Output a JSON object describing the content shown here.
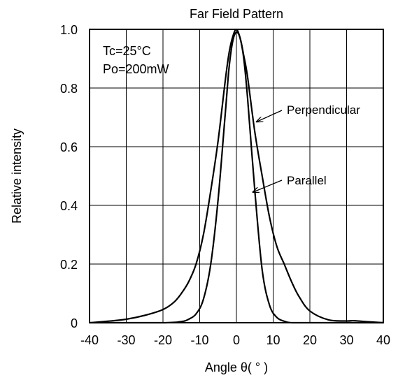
{
  "chart_data": {
    "type": "line",
    "title": "Far Field Pattern",
    "xlabel": "Angle θ( ° )",
    "ylabel": "Relative intensity",
    "xlim": [
      -40,
      40
    ],
    "ylim": [
      0,
      1.0
    ],
    "x_ticks": [
      "-40",
      "-30",
      "-20",
      "-10",
      "0",
      "10",
      "20",
      "30",
      "40"
    ],
    "y_ticks": [
      "0",
      "0.2",
      "0.4",
      "0.6",
      "0.8",
      "1.0"
    ],
    "grid": true,
    "conditions": [
      "Tc=25°C",
      "Po=200mW"
    ],
    "series": [
      {
        "name": "Perpendicular",
        "x": [
          -40,
          -35,
          -30,
          -25,
          -20,
          -17,
          -15,
          -13,
          -11,
          -9,
          -7,
          -5,
          -3,
          -2,
          -1,
          0,
          1,
          2,
          3,
          5,
          7,
          9,
          11,
          13,
          15,
          17,
          20,
          25,
          30,
          32,
          35,
          40
        ],
        "y": [
          0.0,
          0.005,
          0.012,
          0.025,
          0.045,
          0.07,
          0.1,
          0.14,
          0.2,
          0.3,
          0.45,
          0.62,
          0.83,
          0.92,
          0.975,
          1.0,
          0.97,
          0.91,
          0.84,
          0.65,
          0.5,
          0.36,
          0.26,
          0.2,
          0.14,
          0.09,
          0.04,
          0.01,
          0.006,
          0.007,
          0.004,
          0.0
        ]
      },
      {
        "name": "Parallel",
        "x": [
          -40,
          -20,
          -15,
          -13,
          -11,
          -9,
          -7,
          -5,
          -3,
          -2,
          -1,
          0,
          1,
          2,
          3,
          5,
          7,
          9,
          11,
          13,
          15,
          20,
          40
        ],
        "y": [
          0.0,
          0.0,
          0.004,
          0.012,
          0.03,
          0.08,
          0.2,
          0.42,
          0.72,
          0.87,
          0.96,
          0.99,
          0.97,
          0.9,
          0.77,
          0.45,
          0.18,
          0.06,
          0.018,
          0.005,
          0.0,
          0.0,
          0.0
        ]
      }
    ],
    "annotations": [
      {
        "text": "Perpendicular",
        "target_x": 5.5,
        "target_y": 0.685
      },
      {
        "text": "Parallel",
        "target_x": 4.5,
        "target_y": 0.445
      }
    ],
    "line_color": "#000000"
  }
}
